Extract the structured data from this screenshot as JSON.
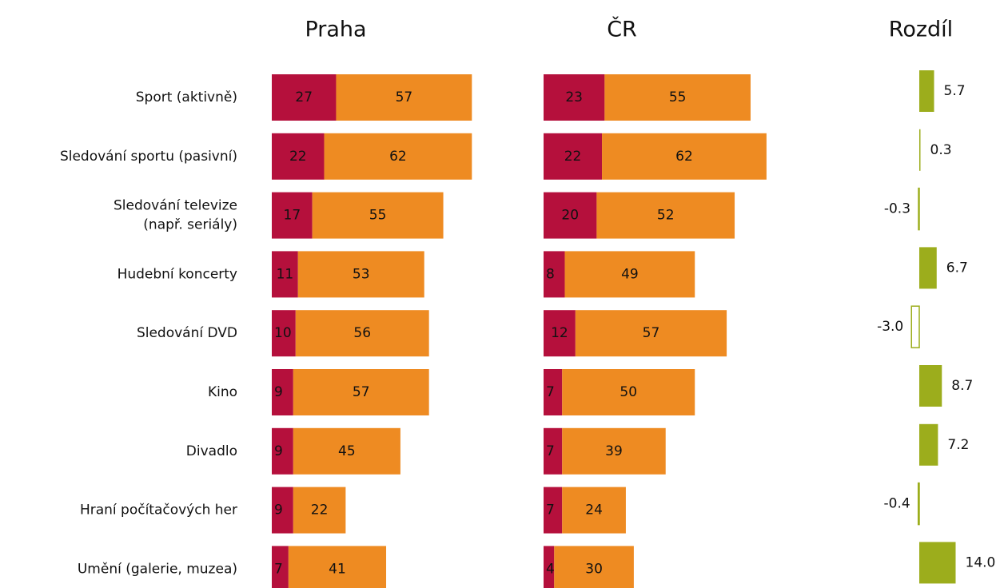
{
  "chart_data": [
    {
      "type": "stacked-bar",
      "title": "Praha",
      "categories": [
        "Sport (aktivně)",
        "Sledování sportu (pasivní)",
        "Sledování televize\n(např. seriály)",
        "Hudební koncerty",
        "Sledování DVD",
        "Kino",
        "Divadlo",
        "Hraní počítačových her",
        "Umění (galerie, muzea)"
      ],
      "series": [
        {
          "color": "#b5103c",
          "values": [
            27,
            22,
            17,
            11,
            10,
            9,
            9,
            9,
            7
          ]
        },
        {
          "color": "#ee8b22",
          "values": [
            57,
            62,
            55,
            53,
            56,
            57,
            45,
            22,
            41
          ]
        }
      ]
    },
    {
      "type": "stacked-bar",
      "title": "ČR",
      "series": [
        {
          "color": "#b5103c",
          "values": [
            23,
            22,
            20,
            8,
            12,
            7,
            7,
            7,
            4
          ]
        },
        {
          "color": "#ee8b22",
          "values": [
            55,
            62,
            52,
            49,
            57,
            50,
            39,
            24,
            30
          ]
        }
      ]
    },
    {
      "type": "diverging-bar",
      "title": "Rozdíl",
      "color": "#9cad1c",
      "values": [
        5.7,
        0.3,
        -0.3,
        6.7,
        -3.0,
        8.7,
        7.2,
        -0.4,
        14.0
      ],
      "value_labels": [
        "5.7",
        "0.3",
        "-0.3",
        "6.7",
        "-3.0",
        "8.7",
        "7.2",
        "-0.4",
        "14.0"
      ]
    }
  ]
}
